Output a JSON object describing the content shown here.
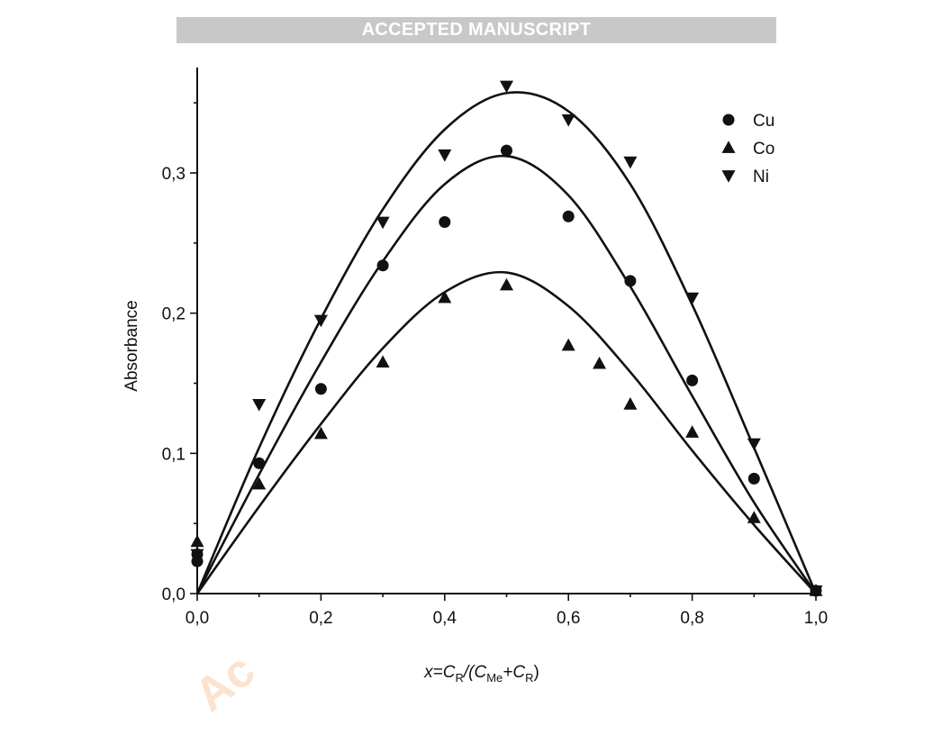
{
  "banner": {
    "text": "ACCEPTED MANUSCRIPT"
  },
  "watermark": {
    "text": "Ac"
  },
  "colors": {
    "banner_bg": "#c8c8c8",
    "banner_text": "#ffffff",
    "ink": "#111111",
    "watermark": "#fbe3cf"
  },
  "chart_data": {
    "type": "scatter",
    "title": "",
    "xlabel_parts": [
      "x",
      "=C",
      "R",
      "/(C",
      "Me",
      "+C",
      "R",
      ")"
    ],
    "ylabel": "Absorbance",
    "xlim": [
      0,
      1.0
    ],
    "ylim": [
      0,
      0.36
    ],
    "x_ticks": [
      0.0,
      0.2,
      0.4,
      0.6,
      0.8,
      1.0
    ],
    "x_tick_labels": [
      "0,0",
      "0,2",
      "0,4",
      "0,6",
      "0,8",
      "1,0"
    ],
    "y_ticks": [
      0.0,
      0.1,
      0.2,
      0.3
    ],
    "y_tick_labels": [
      "0,0",
      "0,1",
      "0,2",
      "0,3"
    ],
    "grid": false,
    "legend_position": "top-right",
    "series": [
      {
        "name": "Cu",
        "marker": "circle",
        "points": [
          [
            0.0,
            0.028
          ],
          [
            0.0,
            0.023
          ],
          [
            0.1,
            0.093
          ],
          [
            0.2,
            0.146
          ],
          [
            0.3,
            0.234
          ],
          [
            0.4,
            0.265
          ],
          [
            0.5,
            0.316
          ],
          [
            0.6,
            0.269
          ],
          [
            0.7,
            0.223
          ],
          [
            0.8,
            0.152
          ],
          [
            0.9,
            0.082
          ],
          [
            1.0,
            0.002
          ]
        ],
        "fit": [
          [
            0.0,
            0.0
          ],
          [
            0.1,
            0.085
          ],
          [
            0.2,
            0.165
          ],
          [
            0.3,
            0.237
          ],
          [
            0.4,
            0.292
          ],
          [
            0.5,
            0.312
          ],
          [
            0.6,
            0.284
          ],
          [
            0.7,
            0.219
          ],
          [
            0.8,
            0.141
          ],
          [
            0.9,
            0.065
          ],
          [
            1.0,
            0.0
          ]
        ]
      },
      {
        "name": "Co",
        "marker": "triangle-up",
        "points": [
          [
            0.0,
            0.037
          ],
          [
            0.1,
            0.078
          ],
          [
            0.2,
            0.114
          ],
          [
            0.3,
            0.165
          ],
          [
            0.4,
            0.211
          ],
          [
            0.5,
            0.22
          ],
          [
            0.6,
            0.177
          ],
          [
            0.65,
            0.164
          ],
          [
            0.7,
            0.135
          ],
          [
            0.8,
            0.115
          ],
          [
            0.9,
            0.054
          ],
          [
            1.0,
            0.002
          ]
        ],
        "fit": [
          [
            0.0,
            0.0
          ],
          [
            0.1,
            0.062
          ],
          [
            0.2,
            0.121
          ],
          [
            0.3,
            0.175
          ],
          [
            0.4,
            0.215
          ],
          [
            0.5,
            0.229
          ],
          [
            0.6,
            0.205
          ],
          [
            0.7,
            0.158
          ],
          [
            0.8,
            0.102
          ],
          [
            0.9,
            0.049
          ],
          [
            1.0,
            0.0
          ]
        ]
      },
      {
        "name": "Ni",
        "marker": "triangle-down",
        "points": [
          [
            0.0,
            0.028
          ],
          [
            0.1,
            0.135
          ],
          [
            0.2,
            0.195
          ],
          [
            0.3,
            0.265
          ],
          [
            0.4,
            0.313
          ],
          [
            0.5,
            0.362
          ],
          [
            0.6,
            0.338
          ],
          [
            0.7,
            0.308
          ],
          [
            0.8,
            0.211
          ],
          [
            0.9,
            0.107
          ],
          [
            1.0,
            0.002
          ]
        ],
        "fit": [
          [
            0.0,
            0.0
          ],
          [
            0.1,
            0.104
          ],
          [
            0.2,
            0.196
          ],
          [
            0.3,
            0.274
          ],
          [
            0.4,
            0.331
          ],
          [
            0.5,
            0.357
          ],
          [
            0.6,
            0.344
          ],
          [
            0.7,
            0.292
          ],
          [
            0.8,
            0.206
          ],
          [
            0.9,
            0.104
          ],
          [
            1.0,
            0.0
          ]
        ]
      }
    ]
  }
}
